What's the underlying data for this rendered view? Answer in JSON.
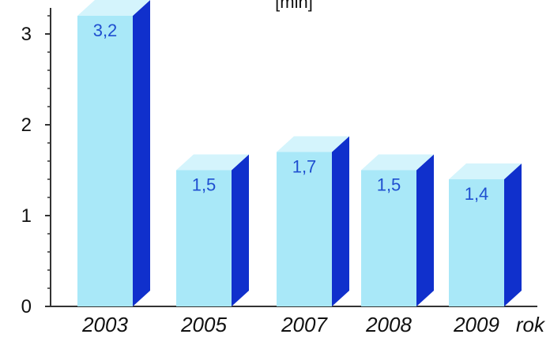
{
  "chart_data": {
    "type": "bar",
    "title": "",
    "unit_label": "[mln]",
    "xlabel": "rok",
    "ylabel": "",
    "categories": [
      "2003",
      "2005",
      "2007",
      "2008",
      "2009"
    ],
    "values": [
      3.2,
      1.5,
      1.7,
      1.5,
      1.4
    ],
    "value_labels": [
      "3,2",
      "1,5",
      "1,7",
      "1,5",
      "1,4"
    ],
    "y_ticks": [
      0,
      1,
      2,
      3
    ],
    "ylim": [
      0,
      3.3
    ],
    "grid": false,
    "legend": "none",
    "style": "3d-column"
  },
  "colors": {
    "bar_front": "#a9e8f8",
    "bar_top": "#d4f4fc",
    "bar_side": "#1030cc",
    "axis": "#333333",
    "value_text": "#1f4fd0"
  }
}
